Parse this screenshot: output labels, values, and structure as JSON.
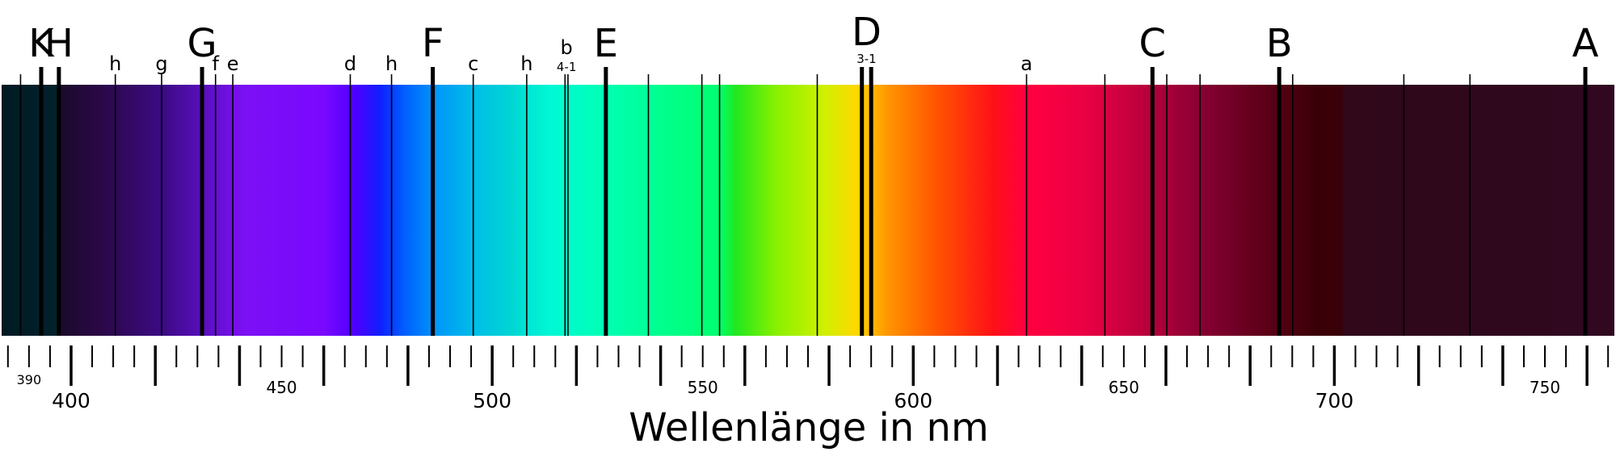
{
  "chart_data": {
    "type": "spectrum",
    "xlabel": "Wellenlänge in nm",
    "xlim": [
      383.5,
      766.5
    ],
    "xticks": [
      385,
      390,
      395,
      400,
      405,
      410,
      415,
      420,
      425,
      430,
      435,
      440,
      445,
      450,
      455,
      460,
      465,
      470,
      475,
      480,
      485,
      490,
      495,
      500,
      505,
      510,
      515,
      520,
      525,
      530,
      535,
      540,
      545,
      550,
      555,
      560,
      565,
      570,
      575,
      580,
      585,
      590,
      595,
      600,
      605,
      610,
      615,
      620,
      625,
      630,
      635,
      640,
      645,
      650,
      655,
      660,
      665,
      670,
      675,
      680,
      685,
      690,
      695,
      700,
      705,
      710,
      715,
      720,
      725,
      730,
      735,
      740,
      745,
      750,
      755,
      760,
      765
    ],
    "xtick_labels": {
      "major": [
        400,
        500,
        600,
        700
      ],
      "minor": [
        450,
        550,
        650,
        750
      ],
      "small": [
        390
      ]
    },
    "line_color": "#000000",
    "features": [
      {
        "lines": [
          388.0
        ],
        "strength": "weak"
      },
      {
        "label": "K",
        "lines": [
          392.9
        ],
        "strength": "strong"
      },
      {
        "label": "H",
        "lines": [
          397.1
        ],
        "strength": "strong"
      },
      {
        "label": "h",
        "lines": [
          410.5
        ],
        "strength": "weak"
      },
      {
        "label": "g",
        "lines": [
          421.5
        ],
        "strength": "weak"
      },
      {
        "label": "G",
        "lines": [
          431.1
        ],
        "strength": "strong"
      },
      {
        "label": "f",
        "lines": [
          434.3
        ],
        "strength": "weak"
      },
      {
        "label": "e",
        "lines": [
          438.4
        ],
        "strength": "weak"
      },
      {
        "label": "d",
        "lines": [
          466.3
        ],
        "strength": "weak"
      },
      {
        "label": "h",
        "lines": [
          476.1
        ],
        "strength": "weak"
      },
      {
        "label": "F",
        "lines": [
          485.9
        ],
        "strength": "strong"
      },
      {
        "label": "c",
        "lines": [
          495.5
        ],
        "strength": "weak"
      },
      {
        "label": "h",
        "lines": [
          508.2
        ],
        "strength": "weak"
      },
      {
        "label": "b",
        "sublabel": "4-1",
        "lines": [
          517.3,
          518.0
        ],
        "strength": "weak"
      },
      {
        "label": "E",
        "lines": [
          527.0
        ],
        "strength": "strong"
      },
      {
        "lines": [
          537.1
        ],
        "strength": "weak"
      },
      {
        "lines": [
          549.8
        ],
        "strength": "weak"
      },
      {
        "lines": [
          554.0
        ],
        "strength": "weak"
      },
      {
        "lines": [
          577.2
        ],
        "strength": "weak"
      },
      {
        "label": "D",
        "sublabel": "3-1",
        "lines": [
          587.8,
          590.0
        ],
        "strength": "strong"
      },
      {
        "label": "a",
        "lines": [
          626.9
        ],
        "strength": "weak"
      },
      {
        "lines": [
          645.5
        ],
        "strength": "weak"
      },
      {
        "label": "C",
        "lines": [
          656.8
        ],
        "strength": "strong"
      },
      {
        "lines": [
          660.2
        ],
        "strength": "weak"
      },
      {
        "lines": [
          668.1
        ],
        "strength": "weak"
      },
      {
        "label": "B",
        "lines": [
          686.9
        ],
        "strength": "strong"
      },
      {
        "lines": [
          690.1
        ],
        "strength": "weak"
      },
      {
        "lines": [
          716.5
        ],
        "strength": "weak"
      },
      {
        "lines": [
          732.2
        ],
        "strength": "weak"
      },
      {
        "label": "A",
        "lines": [
          759.6
        ],
        "strength": "strong"
      }
    ]
  }
}
